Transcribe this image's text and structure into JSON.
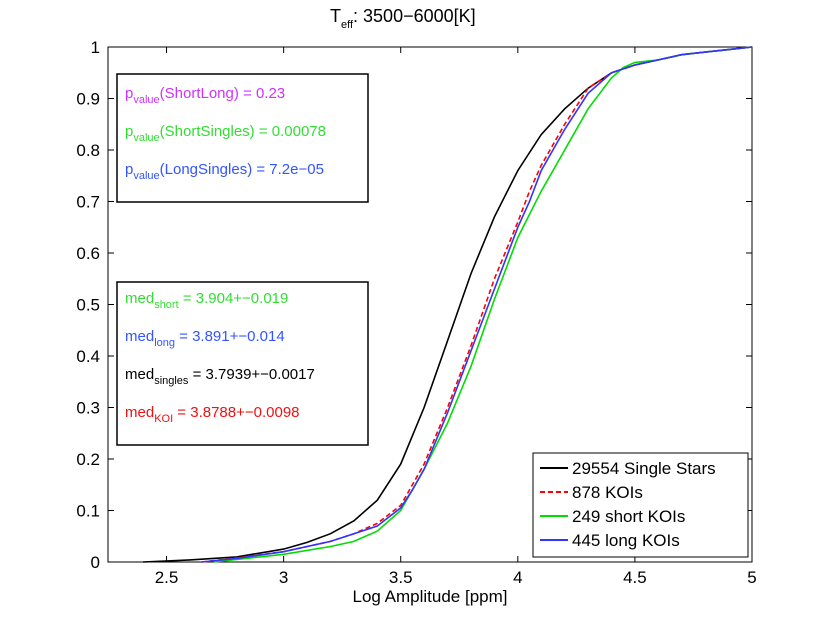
{
  "chart_data": {
    "type": "line",
    "title": "T",
    "title_subscript": "eff",
    "title_rest": ": 3500−6000[K]",
    "xlabel": "Log Amplitude [ppm]",
    "ylabel": "",
    "xlim": [
      2.25,
      5
    ],
    "ylim": [
      0,
      1
    ],
    "xticks": [
      "2.5",
      "3",
      "3.5",
      "4",
      "4.5",
      "5"
    ],
    "yticks": [
      "0",
      "0.1",
      "0.2",
      "0.3",
      "0.4",
      "0.5",
      "0.6",
      "0.7",
      "0.8",
      "0.9",
      "1"
    ],
    "grid": false,
    "legend_position": "bottom-right",
    "series": [
      {
        "name": "29554 Single Stars",
        "color": "#000000",
        "dash": "solid",
        "x": [
          2.4,
          2.6,
          2.8,
          3.0,
          3.1,
          3.2,
          3.3,
          3.4,
          3.5,
          3.6,
          3.7,
          3.8,
          3.9,
          4.0,
          4.1,
          4.2,
          4.3,
          4.4,
          4.5,
          4.6,
          4.7,
          4.8,
          4.9,
          5.0
        ],
        "y": [
          0.0,
          0.004,
          0.01,
          0.025,
          0.038,
          0.055,
          0.08,
          0.12,
          0.19,
          0.3,
          0.43,
          0.56,
          0.67,
          0.76,
          0.83,
          0.88,
          0.92,
          0.95,
          0.965,
          0.975,
          0.985,
          0.99,
          0.995,
          1.0
        ]
      },
      {
        "name": "878 KOIs",
        "color": "#ff0000",
        "dash": "dashed",
        "x": [
          2.65,
          2.8,
          3.0,
          3.2,
          3.3,
          3.4,
          3.5,
          3.55,
          3.6,
          3.7,
          3.8,
          3.9,
          4.0,
          4.05,
          4.1,
          4.2,
          4.3,
          4.4,
          4.5,
          4.6,
          4.7,
          4.8,
          4.9,
          5.0
        ],
        "y": [
          0.0,
          0.008,
          0.02,
          0.04,
          0.055,
          0.075,
          0.11,
          0.15,
          0.19,
          0.3,
          0.42,
          0.55,
          0.66,
          0.72,
          0.77,
          0.85,
          0.92,
          0.95,
          0.965,
          0.975,
          0.985,
          0.99,
          0.995,
          1.0
        ]
      },
      {
        "name": "249 short KOIs",
        "color": "#00dd00",
        "dash": "solid",
        "x": [
          2.7,
          2.8,
          3.0,
          3.2,
          3.3,
          3.4,
          3.5,
          3.55,
          3.6,
          3.7,
          3.8,
          3.9,
          4.0,
          4.1,
          4.2,
          4.3,
          4.4,
          4.45,
          4.5,
          4.6,
          4.7,
          4.8,
          4.9,
          5.0
        ],
        "y": [
          0.0,
          0.005,
          0.015,
          0.03,
          0.04,
          0.06,
          0.1,
          0.14,
          0.18,
          0.27,
          0.38,
          0.51,
          0.63,
          0.72,
          0.8,
          0.88,
          0.94,
          0.96,
          0.97,
          0.975,
          0.985,
          0.99,
          0.995,
          1.0
        ]
      },
      {
        "name": "445 long KOIs",
        "color": "#3333ff",
        "dash": "solid",
        "x": [
          2.65,
          2.8,
          3.0,
          3.2,
          3.3,
          3.4,
          3.5,
          3.55,
          3.6,
          3.7,
          3.8,
          3.9,
          4.0,
          4.05,
          4.1,
          4.2,
          4.3,
          4.4,
          4.5,
          4.6,
          4.7,
          4.8,
          4.9,
          5.0
        ],
        "y": [
          0.0,
          0.007,
          0.02,
          0.04,
          0.055,
          0.07,
          0.105,
          0.14,
          0.18,
          0.29,
          0.41,
          0.53,
          0.65,
          0.7,
          0.76,
          0.84,
          0.91,
          0.95,
          0.965,
          0.975,
          0.985,
          0.99,
          0.995,
          1.0
        ]
      }
    ],
    "annotations_pvalue": [
      {
        "base": "p",
        "sub": "value",
        "text": "(ShortLong) = 0.23",
        "color": "#cc33ff"
      },
      {
        "base": "p",
        "sub": "value",
        "text": "(ShortSingles) = 0.00078",
        "color": "#33dd33"
      },
      {
        "base": "p",
        "sub": "value",
        "text": "(LongSingles) = 7.2e−05",
        "color": "#3355ff"
      }
    ],
    "annotations_median": [
      {
        "base": "med",
        "sub": "short",
        "text": " = 3.904+−0.019",
        "color": "#33dd33"
      },
      {
        "base": "med",
        "sub": "long",
        "text": " = 3.891+−0.014",
        "color": "#3355ff"
      },
      {
        "base": "med",
        "sub": "singles",
        "text": " = 3.7939+−0.0017",
        "color": "#000000"
      },
      {
        "base": "med",
        "sub": "KOI",
        "text": " = 3.8788+−0.0098",
        "color": "#ee1111"
      }
    ]
  }
}
